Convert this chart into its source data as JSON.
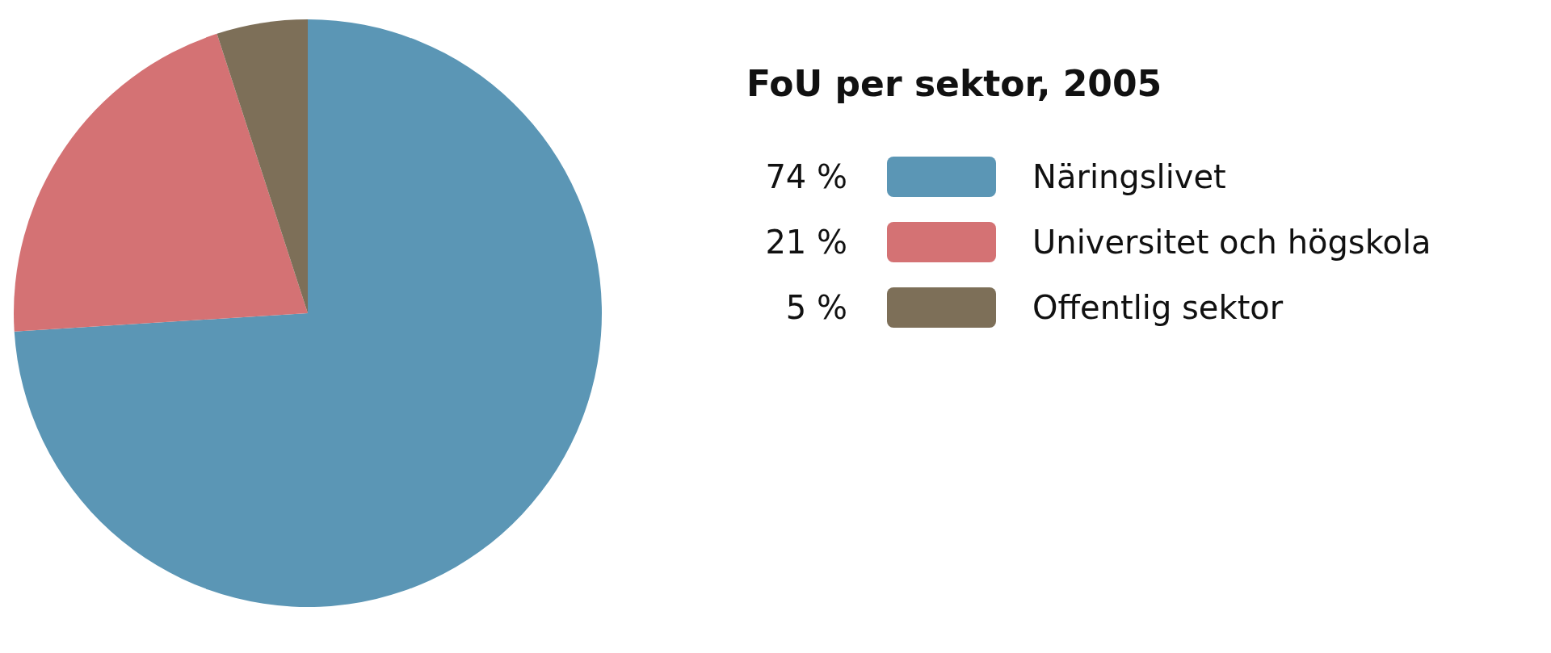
{
  "chart_data": {
    "type": "pie",
    "legend_title": "FoU per sektor, 2005",
    "categories": [
      "Näringslivet",
      "Universitet och högskola",
      "Offentlig sektor"
    ],
    "values": [
      74,
      21,
      5
    ],
    "colors": [
      "#5b96b5",
      "#d47274",
      "#7d6f58"
    ],
    "value_labels": [
      "74 %",
      "21 %",
      "5 %"
    ],
    "legend": "right"
  }
}
